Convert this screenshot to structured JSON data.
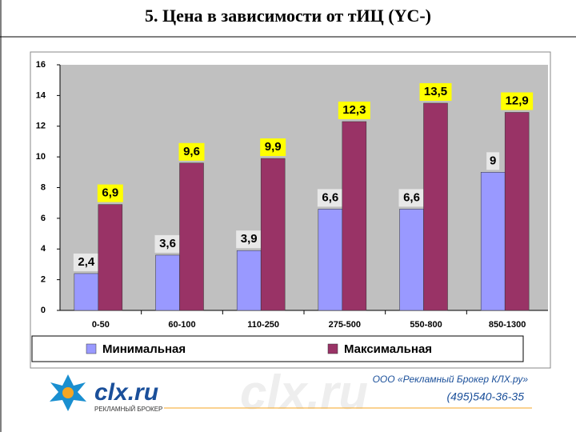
{
  "chart_data": {
    "type": "bar",
    "title": "5. Цена в зависимости от тИЦ (YC-)",
    "categories": [
      "0-50",
      "60-100",
      "110-250",
      "275-500",
      "550-800",
      "850-1300"
    ],
    "series": [
      {
        "name": "Минимальная",
        "color": "#9999ff",
        "values": [
          2.4,
          3.6,
          3.9,
          6.6,
          6.6,
          9
        ],
        "value_labels": [
          "2,4",
          "3,6",
          "3,9",
          "6,6",
          "6,6",
          "9"
        ]
      },
      {
        "name": "Максимальная",
        "color": "#993366",
        "values": [
          6.9,
          9.6,
          9.9,
          12.3,
          13.5,
          12.9
        ],
        "value_labels": [
          "6,9",
          "9,6",
          "9,9",
          "12,3",
          "13,5",
          "12,9"
        ]
      }
    ],
    "ylim": [
      0,
      16
    ],
    "yticks": [
      0,
      2,
      4,
      6,
      8,
      10,
      12,
      14,
      16
    ],
    "grid": false,
    "legend": "bottom"
  },
  "footer": {
    "logo": "clx.ru",
    "logo_subtitle": "РЕКЛАМНЫЙ БРОКЕР",
    "company": "ООО «Рекламный Брокер КЛХ.ру»",
    "phone": "(495)540-36-35"
  }
}
